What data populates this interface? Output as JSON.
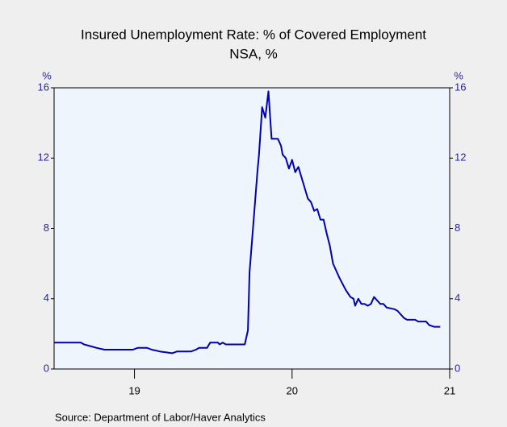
{
  "chart_data": {
    "type": "line",
    "title": "Insured Unemployment Rate: % of Covered Employment",
    "subtitle": "NSA, %",
    "y_unit": "%",
    "y2_unit": "%",
    "source": "Source:  Department of Labor/Haver Analytics",
    "color": "#0000b4",
    "xlim": [
      2018.49,
      2021.0
    ],
    "xticks": [
      {
        "value": 2019,
        "label": "19"
      },
      {
        "value": 2020,
        "label": "20"
      },
      {
        "value": 2021,
        "label": "21"
      }
    ],
    "ylim": [
      0,
      16
    ],
    "yticks": [
      0,
      4,
      8,
      12,
      16
    ],
    "y2lim": [
      0,
      16
    ],
    "y2ticks": [
      0,
      4,
      8,
      12,
      16
    ],
    "x": [
      2018.49,
      2018.66,
      2018.68,
      2018.72,
      2018.76,
      2018.81,
      2018.99,
      2019.02,
      2019.08,
      2019.11,
      2019.16,
      2019.24,
      2019.27,
      2019.36,
      2019.39,
      2019.41,
      2019.46,
      2019.48,
      2019.53,
      2019.54,
      2019.56,
      2019.58,
      2019.7,
      2019.72,
      2019.73,
      2019.76,
      2019.78,
      2019.79,
      2019.81,
      2019.83,
      2019.85,
      2019.87,
      2019.91,
      2019.93,
      2019.94,
      2019.96,
      2019.98,
      2020.0,
      2020.02,
      2020.04,
      2020.1,
      2020.12,
      2020.14,
      2020.16,
      2020.18,
      2020.2,
      2020.22,
      2020.24,
      2020.26,
      2020.3,
      2020.34,
      2020.37,
      2020.39,
      2020.4,
      2020.42,
      2020.44,
      2020.46,
      2020.48,
      2020.5,
      2020.52,
      2020.54,
      2020.56,
      2020.58,
      2020.6,
      2020.65,
      2020.67,
      2020.69,
      2020.71,
      2020.73,
      2020.78,
      2020.8,
      2020.85,
      2020.87,
      2020.9,
      2020.94
    ],
    "values": [
      1.5,
      1.5,
      1.4,
      1.3,
      1.2,
      1.1,
      1.1,
      1.2,
      1.2,
      1.1,
      1.0,
      0.9,
      1.0,
      1.0,
      1.1,
      1.2,
      1.2,
      1.5,
      1.5,
      1.4,
      1.5,
      1.4,
      1.4,
      2.2,
      5.5,
      8.9,
      11.2,
      12.2,
      14.9,
      14.3,
      15.8,
      13.1,
      13.1,
      12.7,
      12.2,
      12.0,
      11.4,
      11.9,
      11.2,
      11.5,
      9.7,
      9.5,
      9.0,
      9.1,
      8.5,
      8.5,
      7.7,
      7.0,
      6.0,
      5.2,
      4.5,
      4.1,
      4.0,
      3.6,
      4.0,
      3.7,
      3.7,
      3.6,
      3.7,
      4.1,
      3.9,
      3.7,
      3.7,
      3.5,
      3.4,
      3.3,
      3.1,
      2.9,
      2.8,
      2.8,
      2.7,
      2.7,
      2.5,
      2.4,
      2.4
    ]
  }
}
